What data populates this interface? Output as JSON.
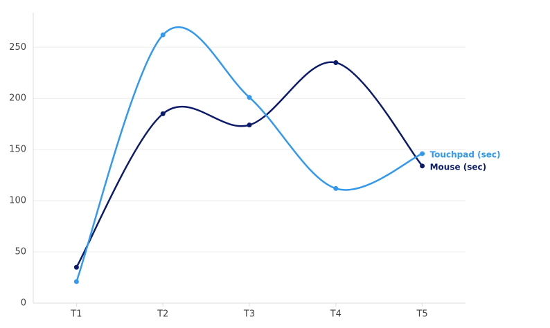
{
  "chart_data": {
    "type": "line",
    "categories": [
      "T1",
      "T2",
      "T3",
      "T4",
      "T5"
    ],
    "series": [
      {
        "name": "Mouse (sec)",
        "color": "#0d1b6b",
        "values": [
          35,
          185,
          174,
          235,
          134
        ]
      },
      {
        "name": "Touchpad (sec)",
        "color": "#3399ee",
        "values": [
          21,
          262,
          201,
          112,
          146
        ]
      }
    ],
    "ylim": [
      0,
      284
    ],
    "yticks": [
      0,
      50,
      100,
      150,
      200,
      250
    ],
    "grid": true
  }
}
